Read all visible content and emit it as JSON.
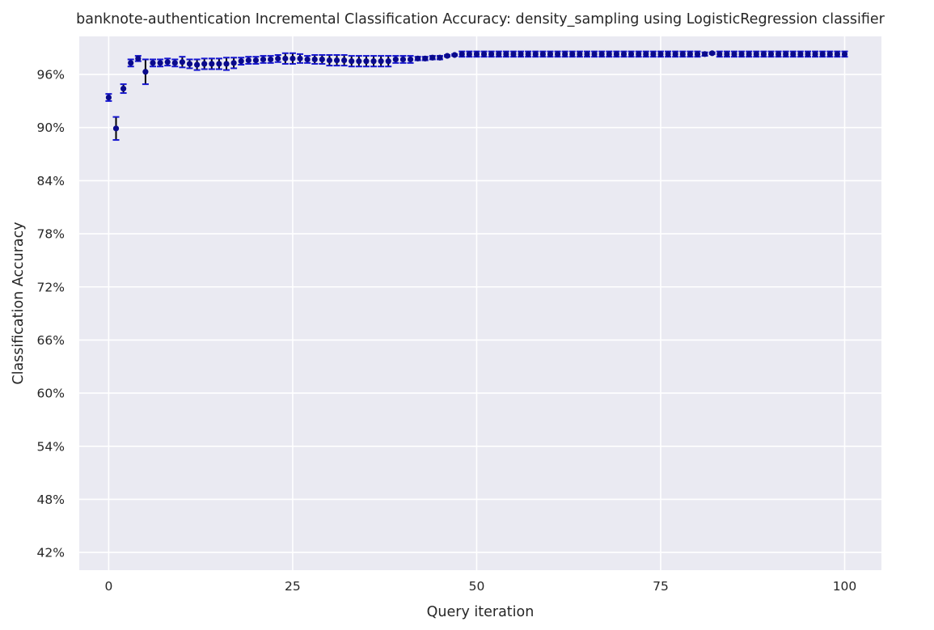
{
  "chart_data": {
    "type": "scatter",
    "title": "banknote-authentication Incremental Classification Accuracy: density_sampling using LogisticRegression classifier",
    "xlabel": "Query iteration",
    "ylabel": "Classification Accuracy",
    "xlim": [
      -4,
      105
    ],
    "ylim": [
      0.4,
      1.003
    ],
    "xticks": [
      0,
      25,
      50,
      75,
      100
    ],
    "xtick_labels": [
      "0",
      "25",
      "50",
      "75",
      "100"
    ],
    "yticks": [
      0.42,
      0.48,
      0.54,
      0.6,
      0.66,
      0.72,
      0.78,
      0.84,
      0.9,
      0.96
    ],
    "ytick_labels": [
      "42%",
      "48%",
      "54%",
      "60%",
      "66%",
      "72%",
      "78%",
      "84%",
      "90%",
      "96%"
    ],
    "grid": true,
    "background_color": "#eaeaf2",
    "grid_color": "#ffffff",
    "marker_color": "#0a0a8c",
    "errorbar_color": "#000000",
    "cap_color": "#1515d0",
    "x": [
      0,
      1,
      2,
      3,
      4,
      5,
      6,
      7,
      8,
      9,
      10,
      11,
      12,
      13,
      14,
      15,
      16,
      17,
      18,
      19,
      20,
      21,
      22,
      23,
      24,
      25,
      26,
      27,
      28,
      29,
      30,
      31,
      32,
      33,
      34,
      35,
      36,
      37,
      38,
      39,
      40,
      41,
      42,
      43,
      44,
      45,
      46,
      47,
      48,
      49,
      50,
      51,
      52,
      53,
      54,
      55,
      56,
      57,
      58,
      59,
      60,
      61,
      62,
      63,
      64,
      65,
      66,
      67,
      68,
      69,
      70,
      71,
      72,
      73,
      74,
      75,
      76,
      77,
      78,
      79,
      80,
      81,
      82,
      83,
      84,
      85,
      86,
      87,
      88,
      89,
      90,
      91,
      92,
      93,
      94,
      95,
      96,
      97,
      98,
      99,
      100
    ],
    "y": [
      0.934,
      0.899,
      0.944,
      0.973,
      0.978,
      0.963,
      0.973,
      0.973,
      0.974,
      0.973,
      0.974,
      0.972,
      0.971,
      0.972,
      0.972,
      0.972,
      0.972,
      0.973,
      0.975,
      0.976,
      0.976,
      0.977,
      0.977,
      0.978,
      0.978,
      0.978,
      0.978,
      0.977,
      0.977,
      0.977,
      0.976,
      0.976,
      0.976,
      0.975,
      0.975,
      0.975,
      0.975,
      0.975,
      0.975,
      0.977,
      0.977,
      0.977,
      0.978,
      0.978,
      0.979,
      0.979,
      0.981,
      0.982,
      0.983,
      0.983,
      0.983,
      0.983,
      0.983,
      0.983,
      0.983,
      0.983,
      0.983,
      0.983,
      0.983,
      0.983,
      0.983,
      0.983,
      0.983,
      0.983,
      0.983,
      0.983,
      0.983,
      0.983,
      0.983,
      0.983,
      0.983,
      0.983,
      0.983,
      0.983,
      0.983,
      0.983,
      0.983,
      0.983,
      0.983,
      0.983,
      0.983,
      0.983,
      0.984,
      0.983,
      0.983,
      0.983,
      0.983,
      0.983,
      0.983,
      0.983,
      0.983,
      0.983,
      0.983,
      0.983,
      0.983,
      0.983,
      0.983,
      0.983,
      0.983,
      0.983,
      0.983
    ],
    "yerr": [
      0.004,
      0.013,
      0.005,
      0.004,
      0.003,
      0.014,
      0.004,
      0.004,
      0.004,
      0.004,
      0.006,
      0.005,
      0.006,
      0.006,
      0.006,
      0.006,
      0.007,
      0.006,
      0.004,
      0.004,
      0.004,
      0.004,
      0.004,
      0.004,
      0.006,
      0.006,
      0.005,
      0.004,
      0.005,
      0.005,
      0.006,
      0.006,
      0.006,
      0.006,
      0.006,
      0.006,
      0.006,
      0.006,
      0.006,
      0.004,
      0.004,
      0.004,
      0.002,
      0.002,
      0.002,
      0.002,
      0.001,
      0.001,
      0.003,
      0.003,
      0.003,
      0.003,
      0.003,
      0.003,
      0.003,
      0.003,
      0.003,
      0.003,
      0.003,
      0.003,
      0.003,
      0.003,
      0.003,
      0.003,
      0.003,
      0.003,
      0.003,
      0.003,
      0.003,
      0.003,
      0.003,
      0.003,
      0.003,
      0.003,
      0.003,
      0.003,
      0.003,
      0.003,
      0.003,
      0.003,
      0.003,
      0.002,
      0.001,
      0.003,
      0.003,
      0.003,
      0.003,
      0.003,
      0.003,
      0.003,
      0.003,
      0.003,
      0.003,
      0.003,
      0.003,
      0.003,
      0.003,
      0.003,
      0.003,
      0.003,
      0.003
    ]
  }
}
